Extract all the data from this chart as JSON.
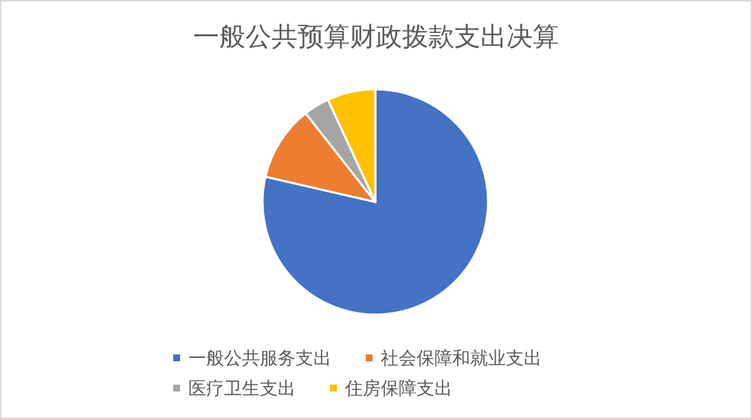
{
  "chart_data": {
    "type": "pie",
    "title": "一般公共预算财政拨款支出决算",
    "categories": [
      "一般公共服务支出",
      "社会保障和就业支出",
      "医疗卫生支出",
      "住房保障支出"
    ],
    "values": [
      78.6,
      10.8,
      3.7,
      6.9
    ],
    "colors": [
      "#4472c4",
      "#ed7d31",
      "#a5a5a5",
      "#ffc000"
    ],
    "legend": "bottom"
  }
}
